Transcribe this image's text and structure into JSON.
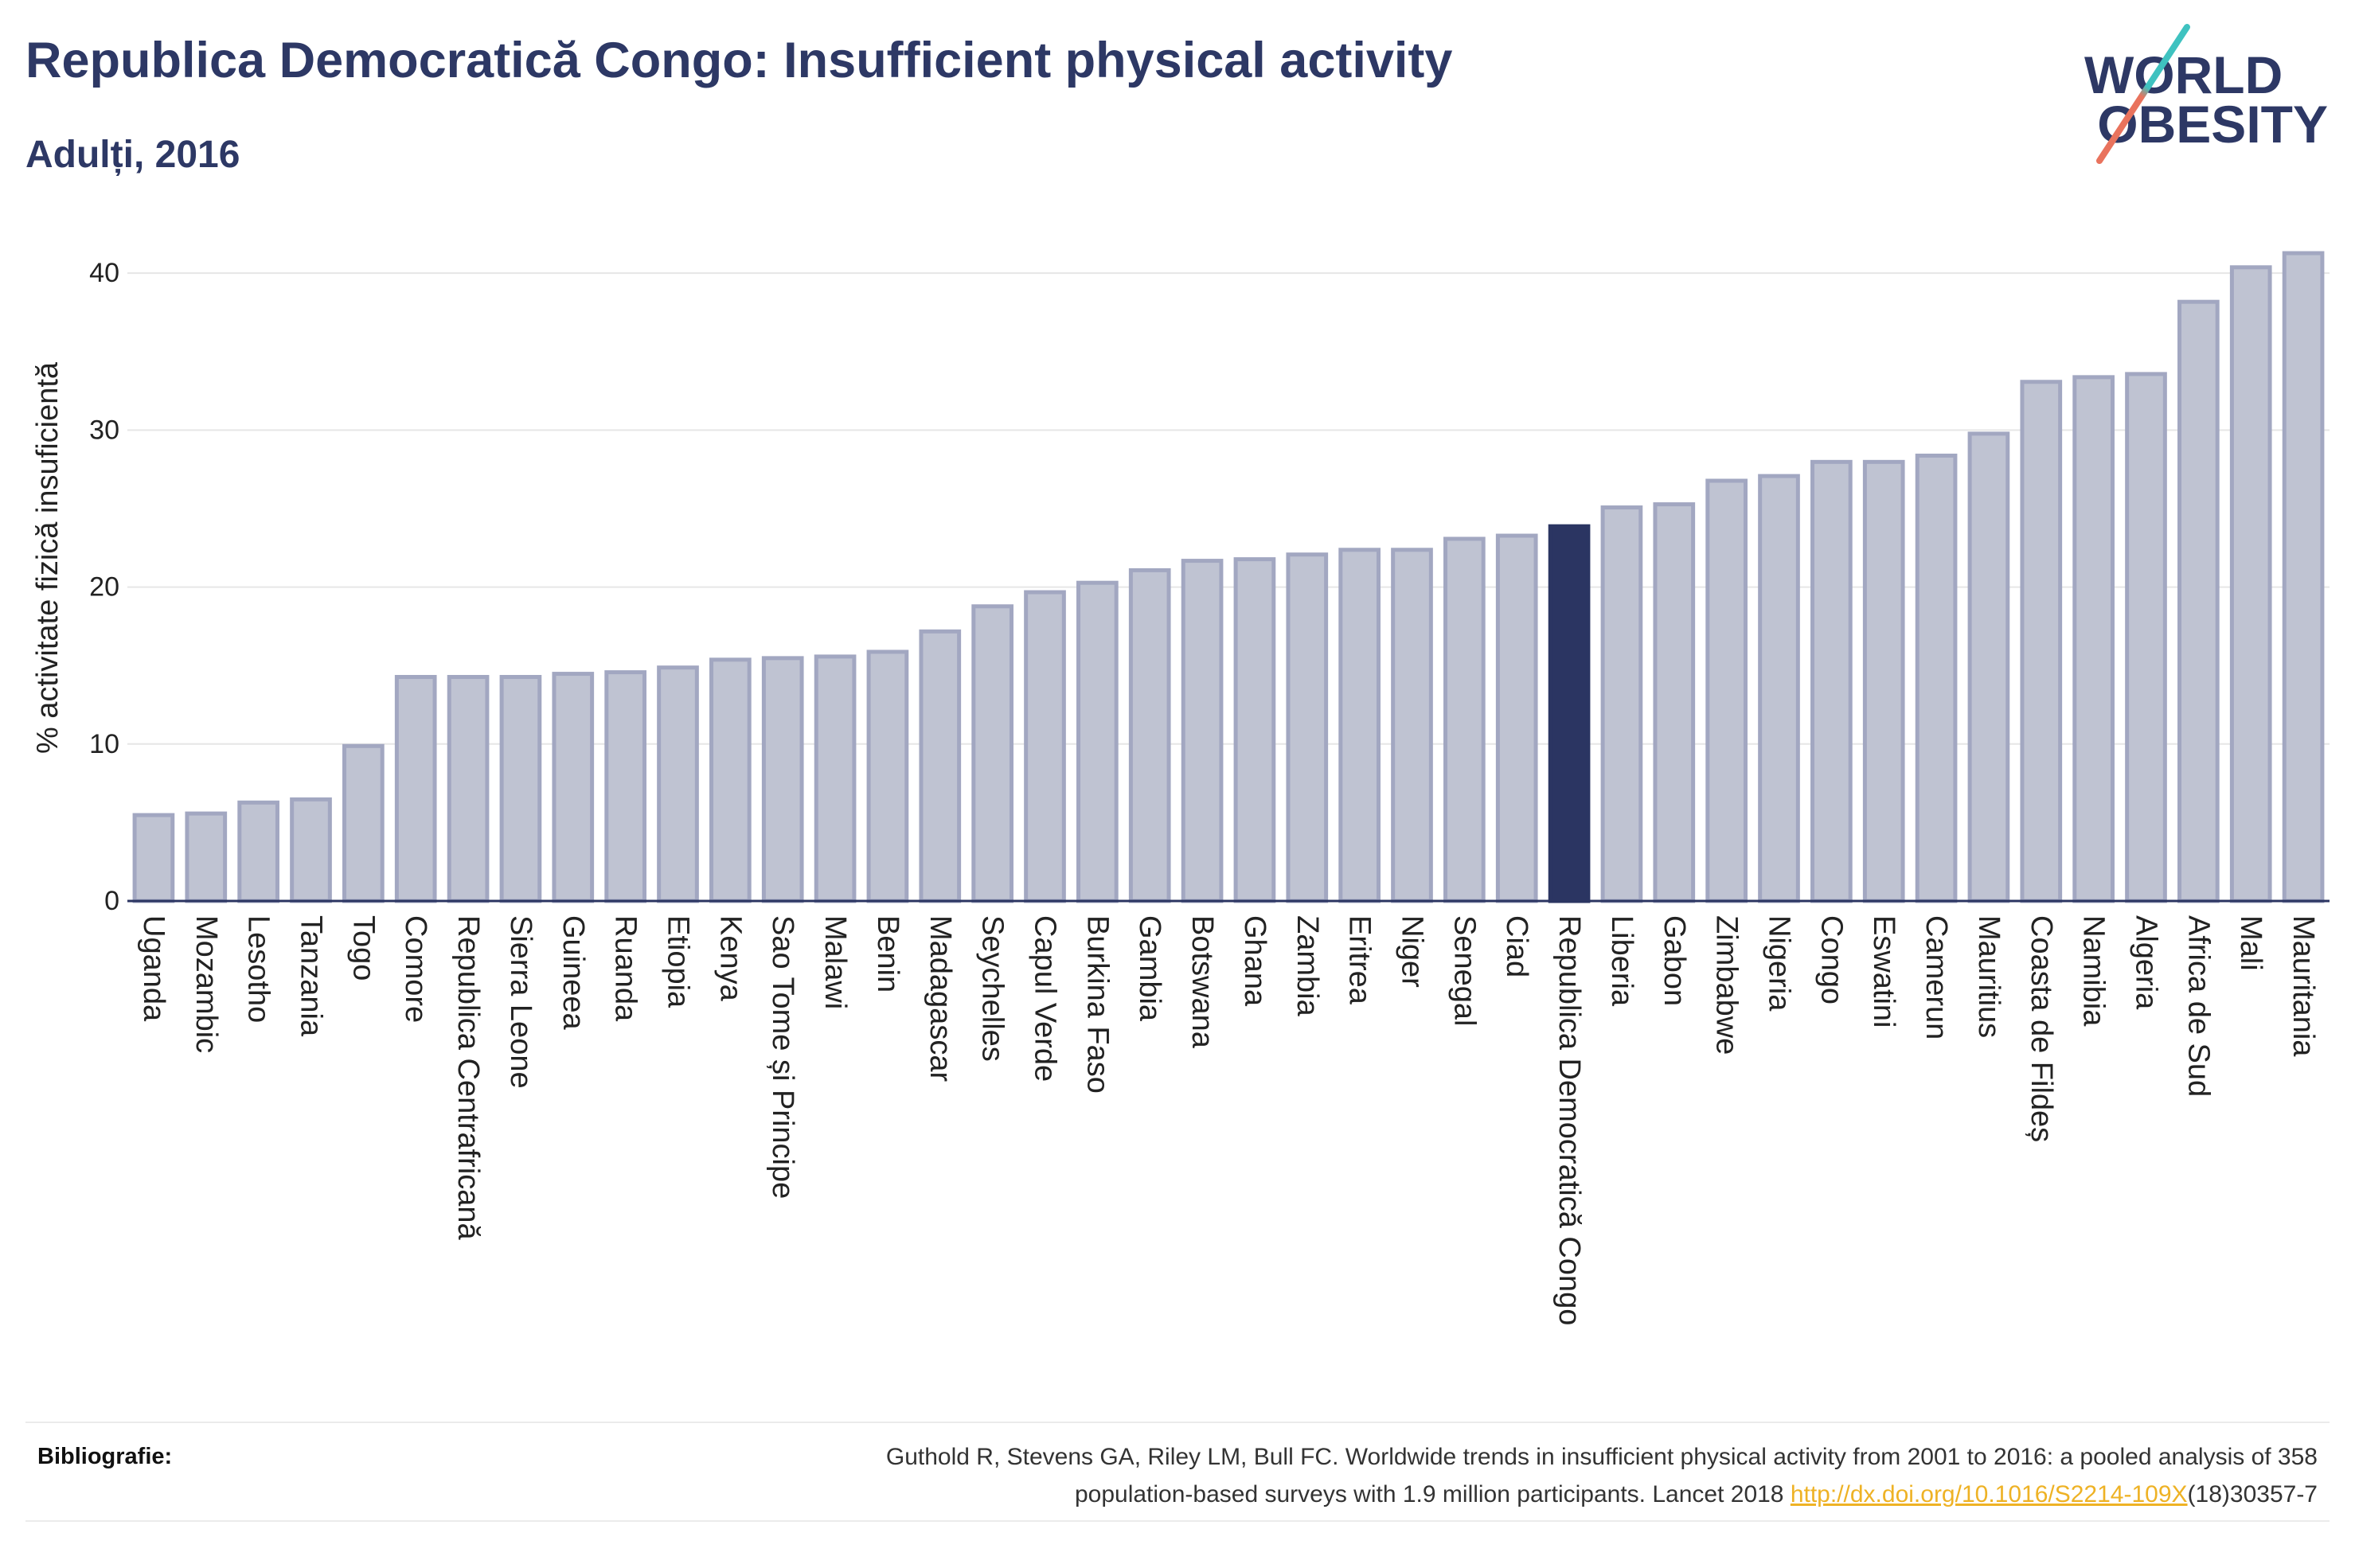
{
  "colors": {
    "title": "#2d3865",
    "text": "#222222",
    "bar_fill": "#bfc3d2",
    "bar_border": "#a2a7c1",
    "highlight": "#2b3562",
    "grid": "#e6e6e6",
    "axis": "#2b3562",
    "link": "#eeb225",
    "rule": "#ebebeb",
    "logo_navy": "#2d3865",
    "logo_teal": "#3fc2c0",
    "logo_coral": "#e9735d"
  },
  "logo": {
    "line1": "WORLD",
    "line2": "OBESITY"
  },
  "chart_data": {
    "type": "bar",
    "title": "Republica Democratică Congo: Insufficient physical activity",
    "subtitle": "Adulți, 2016",
    "xlabel": "",
    "ylabel": "% activitate fizică insuficientă",
    "ylim": [
      0,
      43
    ],
    "yticks": [
      0,
      10,
      20,
      30,
      40
    ],
    "grid": true,
    "highlight_index": 27,
    "categories": [
      "Uganda",
      "Mozambic",
      "Lesotho",
      "Tanzania",
      "Togo",
      "Comore",
      "Republica Centrafricană",
      "Sierra Leone",
      "Guineea",
      "Ruanda",
      "Etiopia",
      "Kenya",
      "Sao Tome și Principe",
      "Malawi",
      "Benin",
      "Madagascar",
      "Seychelles",
      "Capul Verde",
      "Burkina Faso",
      "Gambia",
      "Botswana",
      "Ghana",
      "Zambia",
      "Eritrea",
      "Niger",
      "Senegal",
      "Ciad",
      "Republica Democratică Congo",
      "Liberia",
      "Gabon",
      "Zimbabwe",
      "Nigeria",
      "Congo",
      "Eswatini",
      "Camerun",
      "Mauritius",
      "Coasta de Fildeș",
      "Namibia",
      "Algeria",
      "Africa de Sud",
      "Mali",
      "Mauritania"
    ],
    "values": [
      5.6,
      5.7,
      6.4,
      6.6,
      10.0,
      14.4,
      14.4,
      14.4,
      14.6,
      14.7,
      15.0,
      15.5,
      15.6,
      15.7,
      16.0,
      17.3,
      18.9,
      19.8,
      20.4,
      21.2,
      21.8,
      21.9,
      22.2,
      22.5,
      22.5,
      23.2,
      23.4,
      24.0,
      25.2,
      25.4,
      26.9,
      27.2,
      28.1,
      28.1,
      28.5,
      29.9,
      33.2,
      33.5,
      33.7,
      38.3,
      40.5,
      41.4
    ]
  },
  "footer": {
    "label": "Bibliografie:",
    "citation_line1": "Guthold R, Stevens GA, Riley LM, Bull FC. Worldwide trends in insufficient physical activity from 2001 to 2016: a pooled analysis of 358",
    "citation_line2": "population-based surveys with 1.9 million participants. Lancet 2018 ",
    "link_text": "http://dx.doi.org/10.1016/S2214-109X",
    "citation_tail": "(18)30357-7"
  }
}
